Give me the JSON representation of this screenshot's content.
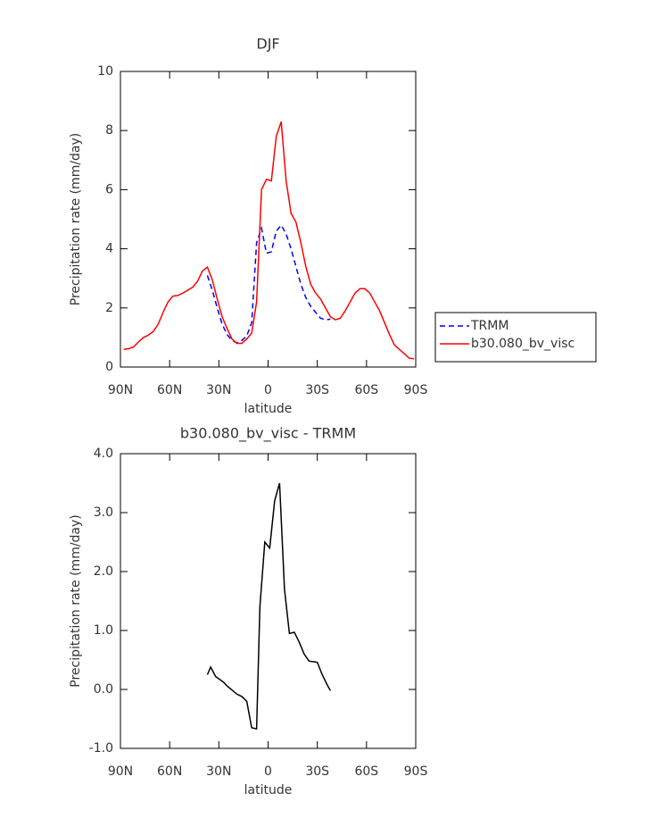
{
  "chart_data": [
    {
      "type": "line",
      "title": "DJF",
      "xlabel": "latitude",
      "ylabel": "Precipitation rate (mm/day)",
      "x": [
        88,
        85,
        82,
        79,
        76,
        73,
        70,
        67,
        64,
        61,
        58,
        55,
        52,
        49,
        46,
        43,
        40,
        37,
        34,
        31,
        28,
        25,
        22,
        19,
        16,
        13,
        10,
        7,
        4,
        1,
        -2,
        -5,
        -8,
        -11,
        -14,
        -17,
        -20,
        -23,
        -26,
        -29,
        -32,
        -35,
        -38,
        -41,
        -44,
        -47,
        -50,
        -53,
        -56,
        -59,
        -62,
        -65,
        -68,
        -71,
        -74,
        -77,
        -80,
        -83,
        -86,
        -89
      ],
      "series": [
        {
          "name": "TRMM",
          "color": "#0000ff",
          "linestyle": "dashed",
          "values": [
            null,
            null,
            null,
            null,
            null,
            null,
            null,
            null,
            null,
            null,
            null,
            null,
            null,
            null,
            null,
            null,
            null,
            3.1,
            2.6,
            2.0,
            1.45,
            1.1,
            0.9,
            0.82,
            0.9,
            1.05,
            1.5,
            4.2,
            4.7,
            3.85,
            3.9,
            4.6,
            4.8,
            4.5,
            4.0,
            3.4,
            2.8,
            2.35,
            2.05,
            1.85,
            1.65,
            1.6,
            1.62,
            null,
            null,
            null,
            null,
            null,
            null,
            null,
            null,
            null,
            null,
            null,
            null,
            null,
            null,
            null,
            null,
            null
          ]
        },
        {
          "name": "b30.080_bv_visc",
          "color": "#ff0000",
          "linestyle": "solid",
          "values": [
            0.6,
            0.62,
            0.68,
            0.85,
            1.0,
            1.08,
            1.2,
            1.45,
            1.85,
            2.2,
            2.4,
            2.42,
            2.5,
            2.6,
            2.7,
            2.9,
            3.25,
            3.38,
            2.95,
            2.3,
            1.7,
            1.3,
            0.95,
            0.8,
            0.8,
            0.95,
            1.15,
            2.2,
            6.0,
            6.35,
            6.3,
            7.8,
            8.3,
            6.3,
            5.2,
            4.9,
            4.2,
            3.4,
            2.8,
            2.5,
            2.3,
            2.0,
            1.7,
            1.6,
            1.65,
            1.9,
            2.2,
            2.5,
            2.65,
            2.65,
            2.5,
            2.2,
            1.9,
            1.5,
            1.1,
            0.75,
            0.6,
            0.45,
            0.3,
            0.28
          ]
        }
      ],
      "xlim": [
        90,
        -90
      ],
      "xticks": [
        {
          "value": 90,
          "label": "90N"
        },
        {
          "value": 60,
          "label": "60N"
        },
        {
          "value": 30,
          "label": "30N"
        },
        0,
        {
          "value": -30,
          "label": "30S"
        },
        {
          "value": -60,
          "label": "60S"
        },
        {
          "value": -90,
          "label": "90S"
        }
      ],
      "ylim": [
        0,
        10
      ],
      "yticks": [
        0,
        2,
        4,
        6,
        8,
        10
      ],
      "legend": "right"
    },
    {
      "type": "line",
      "title": "b30.080_bv_visc - TRMM",
      "xlabel": "latitude",
      "ylabel": "Precipitation rate (mm/day)",
      "x": [
        37,
        35,
        32,
        27,
        25,
        19,
        16,
        13,
        10,
        7,
        5,
        2,
        -1,
        -4,
        -7,
        -10,
        -13,
        -16,
        -19,
        -22,
        -25,
        -28,
        -30,
        -33,
        -36,
        -38
      ],
      "series": [
        {
          "color": "#000000",
          "linestyle": "solid",
          "values": [
            0.25,
            0.38,
            0.22,
            0.12,
            0.06,
            -0.08,
            -0.12,
            -0.2,
            -0.65,
            -0.67,
            1.4,
            2.5,
            2.4,
            3.2,
            3.5,
            1.7,
            0.95,
            0.97,
            0.8,
            0.6,
            0.48,
            0.47,
            0.46,
            0.25,
            0.08,
            -0.02
          ]
        }
      ],
      "xlim": [
        90,
        -90
      ],
      "xticks": [
        {
          "value": 90,
          "label": "90N"
        },
        {
          "value": 60,
          "label": "60N"
        },
        {
          "value": 30,
          "label": "30N"
        },
        0,
        {
          "value": -30,
          "label": "30S"
        },
        {
          "value": -60,
          "label": "60S"
        },
        {
          "value": -90,
          "label": "90S"
        }
      ],
      "ylim": [
        -1,
        4
      ],
      "yticks": [
        {
          "value": -1,
          "label": "-1.0"
        },
        {
          "value": 0,
          "label": "0.0"
        },
        {
          "value": 1,
          "label": "1.0"
        },
        {
          "value": 2,
          "label": "2.0"
        },
        {
          "value": 3,
          "label": "3.0"
        },
        {
          "value": 4,
          "label": "4.0"
        }
      ]
    }
  ]
}
